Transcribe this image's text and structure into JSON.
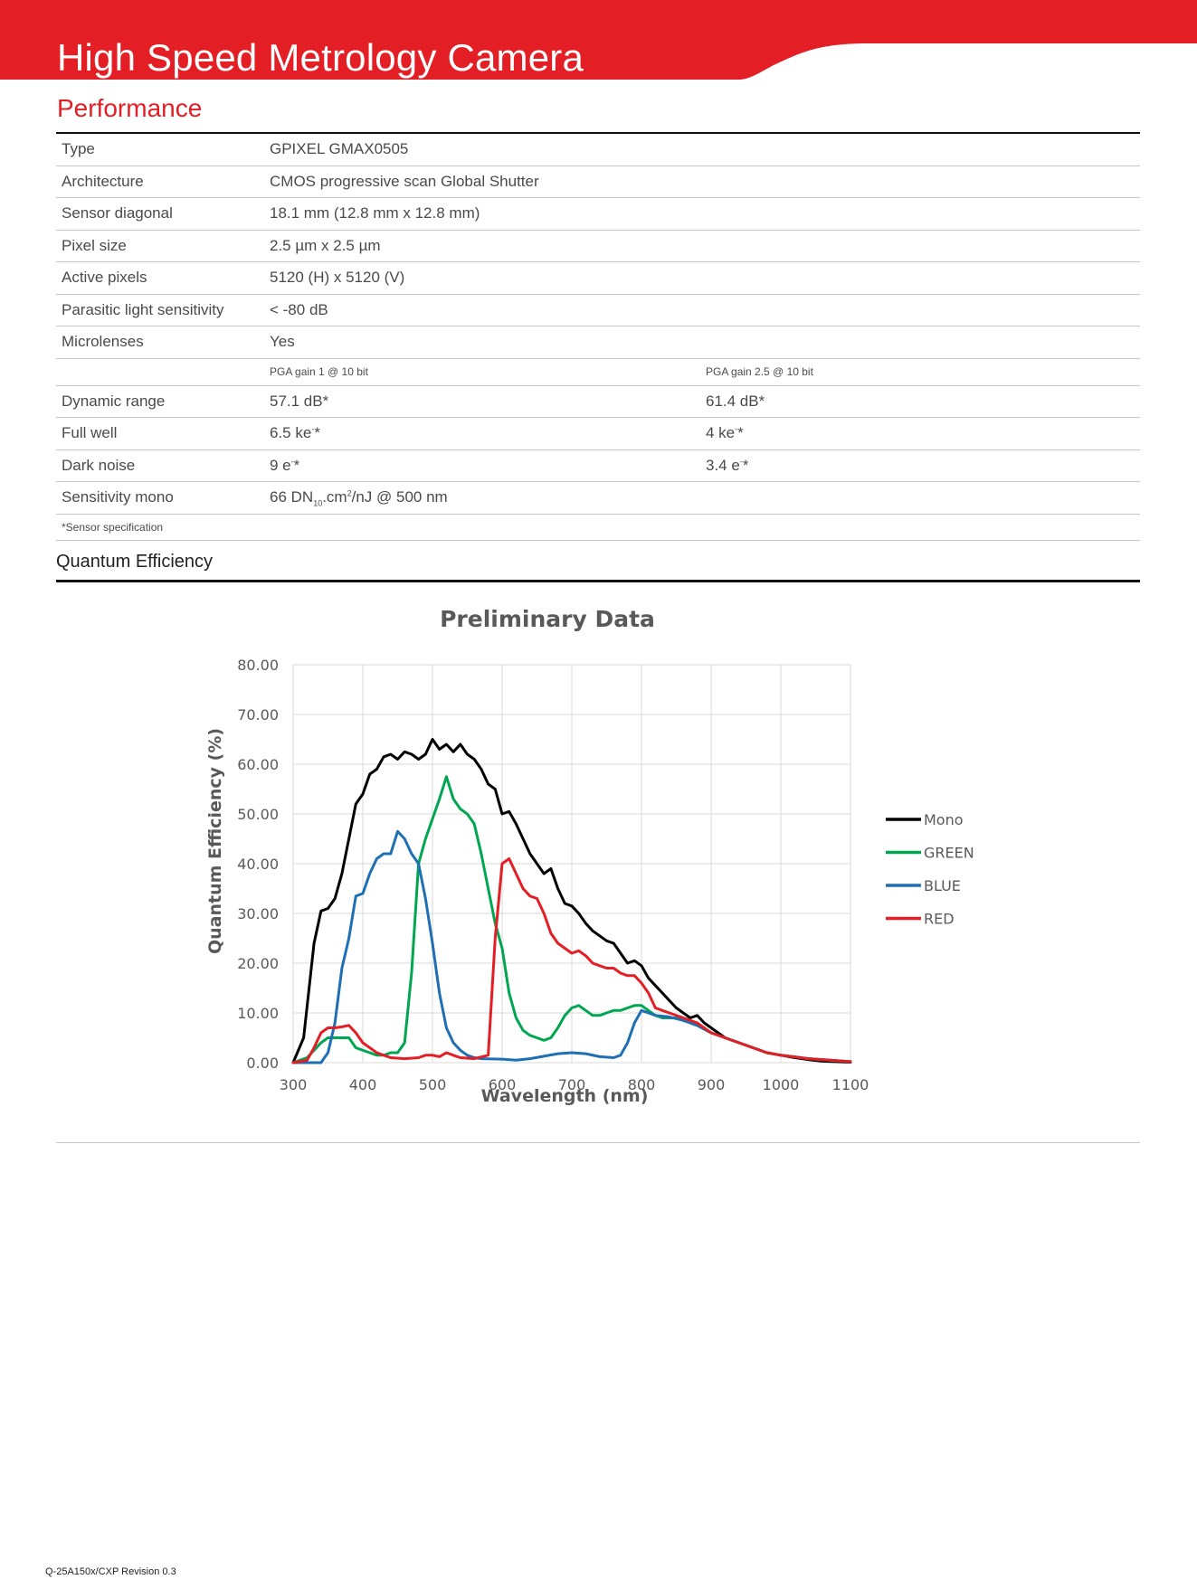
{
  "header": {
    "title": "High Speed Metrology Camera",
    "band_color": "#e31e24"
  },
  "performance": {
    "title": "Performance",
    "rows": [
      {
        "label": "Type",
        "value": "GPIXEL GMAX0505"
      },
      {
        "label": "Architecture",
        "value": "CMOS progressive scan Global Shutter"
      },
      {
        "label": "Sensor diagonal",
        "value": "18.1 mm (12.8 mm x 12.8 mm)"
      },
      {
        "label": "Pixel size",
        "value": "2.5 µm x 2.5 µm"
      },
      {
        "label": "Active pixels",
        "value": "5120 (H) x 5120 (V)"
      },
      {
        "label": "Parasitic light sensitivity",
        "value": "< -80 dB"
      },
      {
        "label": "Microlenses",
        "value": "Yes"
      }
    ],
    "gain_headers": [
      "PGA gain 1 @ 10 bit",
      "PGA gain 2.5 @ 10 bit"
    ],
    "gain_rows": [
      {
        "label": "Dynamic range",
        "v1": "57.1 dB*",
        "v2": "61.4 dB*"
      },
      {
        "label": "Full well",
        "v1_main": "6.5 ke",
        "v1_sup": "-",
        "v1_suffix": "*",
        "v2_main": "4 ke",
        "v2_sup": "-",
        "v2_suffix": "*"
      },
      {
        "label": "Dark noise",
        "v1_main": "9 e",
        "v1_sup": "-",
        "v1_suffix": "*",
        "v2_main": "3.4 e",
        "v2_sup": "-",
        "v2_suffix": "*"
      }
    ],
    "sensitivity": {
      "label": "Sensitivity mono",
      "p1": "66 DN",
      "sub": "10",
      "p2": ".cm",
      "sup": "2",
      "p3": "/nJ @ 500 nm"
    },
    "note": "*Sensor specification"
  },
  "qe_section": {
    "title": "Quantum Efficiency"
  },
  "chart_data": {
    "type": "line",
    "title": "Preliminary Data",
    "xlabel": "Wavelength (nm)",
    "ylabel": "Quantum Efficiency (%)",
    "xlim": [
      300,
      1100
    ],
    "ylim": [
      0,
      80
    ],
    "x_ticks": [
      "300",
      "400",
      "500",
      "600",
      "700",
      "800",
      "900",
      "1000",
      "1100"
    ],
    "y_ticks": [
      "0.00",
      "10.00",
      "20.00",
      "30.00",
      "40.00",
      "50.00",
      "60.00",
      "70.00",
      "80.00"
    ],
    "grid": true,
    "legend": "right",
    "series": [
      {
        "name": "Mono",
        "color": "#000000",
        "points": [
          [
            300,
            0
          ],
          [
            315,
            5
          ],
          [
            330,
            24
          ],
          [
            340,
            30.5
          ],
          [
            350,
            31
          ],
          [
            360,
            33
          ],
          [
            370,
            38
          ],
          [
            380,
            45
          ],
          [
            390,
            52
          ],
          [
            400,
            54
          ],
          [
            410,
            58
          ],
          [
            420,
            59
          ],
          [
            430,
            61.5
          ],
          [
            440,
            62
          ],
          [
            450,
            61
          ],
          [
            460,
            62.5
          ],
          [
            470,
            62
          ],
          [
            480,
            61
          ],
          [
            490,
            62
          ],
          [
            500,
            65
          ],
          [
            510,
            63
          ],
          [
            520,
            64
          ],
          [
            530,
            62.5
          ],
          [
            540,
            64
          ],
          [
            550,
            62
          ],
          [
            560,
            61
          ],
          [
            570,
            59
          ],
          [
            580,
            56
          ],
          [
            590,
            55
          ],
          [
            600,
            50
          ],
          [
            610,
            50.5
          ],
          [
            620,
            48
          ],
          [
            630,
            45
          ],
          [
            640,
            42
          ],
          [
            650,
            40
          ],
          [
            660,
            38
          ],
          [
            670,
            39
          ],
          [
            680,
            35
          ],
          [
            690,
            32
          ],
          [
            700,
            31.5
          ],
          [
            710,
            30
          ],
          [
            720,
            28
          ],
          [
            730,
            26.5
          ],
          [
            740,
            25.5
          ],
          [
            750,
            24.5
          ],
          [
            760,
            24
          ],
          [
            770,
            22
          ],
          [
            780,
            20
          ],
          [
            790,
            20.5
          ],
          [
            800,
            19.5
          ],
          [
            810,
            17
          ],
          [
            820,
            15.5
          ],
          [
            830,
            14
          ],
          [
            840,
            12.5
          ],
          [
            850,
            11
          ],
          [
            860,
            10
          ],
          [
            870,
            9
          ],
          [
            880,
            9.5
          ],
          [
            890,
            8
          ],
          [
            900,
            7
          ],
          [
            910,
            6
          ],
          [
            920,
            5
          ],
          [
            940,
            4
          ],
          [
            960,
            3
          ],
          [
            980,
            2
          ],
          [
            1000,
            1.5
          ],
          [
            1020,
            1
          ],
          [
            1040,
            0.6
          ],
          [
            1060,
            0.3
          ],
          [
            1100,
            0.1
          ]
        ]
      },
      {
        "name": "GREEN",
        "color": "#00a650",
        "points": [
          [
            300,
            0
          ],
          [
            320,
            1
          ],
          [
            330,
            2.5
          ],
          [
            340,
            4
          ],
          [
            350,
            5
          ],
          [
            360,
            5
          ],
          [
            370,
            5
          ],
          [
            380,
            5
          ],
          [
            390,
            3
          ],
          [
            400,
            2.5
          ],
          [
            410,
            2
          ],
          [
            420,
            1.5
          ],
          [
            430,
            1.5
          ],
          [
            440,
            2
          ],
          [
            450,
            2
          ],
          [
            460,
            4
          ],
          [
            470,
            18
          ],
          [
            480,
            40
          ],
          [
            490,
            45
          ],
          [
            500,
            49
          ],
          [
            510,
            53
          ],
          [
            520,
            57.5
          ],
          [
            530,
            53
          ],
          [
            540,
            51
          ],
          [
            550,
            50
          ],
          [
            560,
            48
          ],
          [
            570,
            42
          ],
          [
            580,
            35
          ],
          [
            590,
            28
          ],
          [
            600,
            23
          ],
          [
            610,
            14
          ],
          [
            620,
            9
          ],
          [
            630,
            6.5
          ],
          [
            640,
            5.5
          ],
          [
            650,
            5
          ],
          [
            660,
            4.5
          ],
          [
            670,
            5
          ],
          [
            680,
            7
          ],
          [
            690,
            9.5
          ],
          [
            700,
            11
          ],
          [
            710,
            11.5
          ],
          [
            720,
            10.5
          ],
          [
            730,
            9.5
          ],
          [
            740,
            9.5
          ],
          [
            750,
            10
          ],
          [
            760,
            10.5
          ],
          [
            770,
            10.5
          ],
          [
            780,
            11
          ],
          [
            790,
            11.5
          ],
          [
            800,
            11.5
          ],
          [
            810,
            10.5
          ],
          [
            820,
            9.5
          ],
          [
            830,
            9
          ],
          [
            840,
            9
          ],
          [
            850,
            9
          ],
          [
            860,
            8.5
          ],
          [
            880,
            7.5
          ],
          [
            900,
            6
          ],
          [
            920,
            5
          ],
          [
            940,
            4
          ],
          [
            960,
            3
          ],
          [
            980,
            2
          ],
          [
            1000,
            1.5
          ],
          [
            1040,
            0.8
          ],
          [
            1100,
            0.2
          ]
        ]
      },
      {
        "name": "BLUE",
        "color": "#1f6fb4",
        "points": [
          [
            300,
            0
          ],
          [
            340,
            0
          ],
          [
            350,
            2
          ],
          [
            360,
            8
          ],
          [
            370,
            19
          ],
          [
            380,
            25
          ],
          [
            390,
            33.5
          ],
          [
            400,
            34
          ],
          [
            410,
            38
          ],
          [
            420,
            41
          ],
          [
            430,
            42
          ],
          [
            440,
            42
          ],
          [
            450,
            46.5
          ],
          [
            460,
            45
          ],
          [
            470,
            42
          ],
          [
            480,
            40
          ],
          [
            490,
            33
          ],
          [
            500,
            24
          ],
          [
            510,
            14
          ],
          [
            520,
            7
          ],
          [
            530,
            4
          ],
          [
            540,
            2.5
          ],
          [
            550,
            1.5
          ],
          [
            560,
            1
          ],
          [
            570,
            0.8
          ],
          [
            600,
            0.7
          ],
          [
            620,
            0.5
          ],
          [
            640,
            0.8
          ],
          [
            660,
            1.3
          ],
          [
            680,
            1.8
          ],
          [
            700,
            2
          ],
          [
            720,
            1.8
          ],
          [
            740,
            1.2
          ],
          [
            760,
            1
          ],
          [
            770,
            1.5
          ],
          [
            780,
            4
          ],
          [
            790,
            8
          ],
          [
            800,
            10.5
          ],
          [
            810,
            10
          ],
          [
            820,
            9.5
          ],
          [
            840,
            9.2
          ],
          [
            860,
            8.5
          ],
          [
            880,
            7.5
          ],
          [
            900,
            6
          ],
          [
            920,
            5
          ],
          [
            940,
            4
          ],
          [
            960,
            3
          ],
          [
            980,
            2
          ],
          [
            1000,
            1.5
          ],
          [
            1040,
            0.8
          ],
          [
            1100,
            0.2
          ]
        ]
      },
      {
        "name": "RED",
        "color": "#e31e24",
        "points": [
          [
            300,
            0
          ],
          [
            320,
            0.5
          ],
          [
            330,
            3
          ],
          [
            340,
            6
          ],
          [
            350,
            7
          ],
          [
            360,
            7
          ],
          [
            370,
            7.2
          ],
          [
            380,
            7.5
          ],
          [
            390,
            6
          ],
          [
            400,
            4
          ],
          [
            410,
            3
          ],
          [
            420,
            2
          ],
          [
            430,
            1.5
          ],
          [
            440,
            1
          ],
          [
            460,
            0.8
          ],
          [
            480,
            1
          ],
          [
            490,
            1.5
          ],
          [
            500,
            1.5
          ],
          [
            510,
            1.2
          ],
          [
            520,
            2
          ],
          [
            530,
            1.5
          ],
          [
            540,
            1
          ],
          [
            560,
            0.8
          ],
          [
            580,
            1.5
          ],
          [
            590,
            25
          ],
          [
            600,
            40
          ],
          [
            610,
            41
          ],
          [
            620,
            38
          ],
          [
            630,
            35
          ],
          [
            640,
            33.5
          ],
          [
            650,
            33
          ],
          [
            660,
            30
          ],
          [
            670,
            26
          ],
          [
            680,
            24
          ],
          [
            690,
            23
          ],
          [
            700,
            22
          ],
          [
            710,
            22.5
          ],
          [
            720,
            21.5
          ],
          [
            730,
            20
          ],
          [
            740,
            19.5
          ],
          [
            750,
            19
          ],
          [
            760,
            19
          ],
          [
            770,
            18
          ],
          [
            780,
            17.5
          ],
          [
            790,
            17.5
          ],
          [
            800,
            16
          ],
          [
            810,
            14
          ],
          [
            820,
            11
          ],
          [
            830,
            10.5
          ],
          [
            840,
            10
          ],
          [
            860,
            9
          ],
          [
            880,
            8
          ],
          [
            900,
            6
          ],
          [
            920,
            5
          ],
          [
            940,
            4
          ],
          [
            960,
            3
          ],
          [
            980,
            2
          ],
          [
            1000,
            1.5
          ],
          [
            1040,
            0.8
          ],
          [
            1100,
            0.2
          ]
        ]
      }
    ]
  },
  "footer": {
    "text": "Q-25A150x/CXP Revision 0.3"
  }
}
